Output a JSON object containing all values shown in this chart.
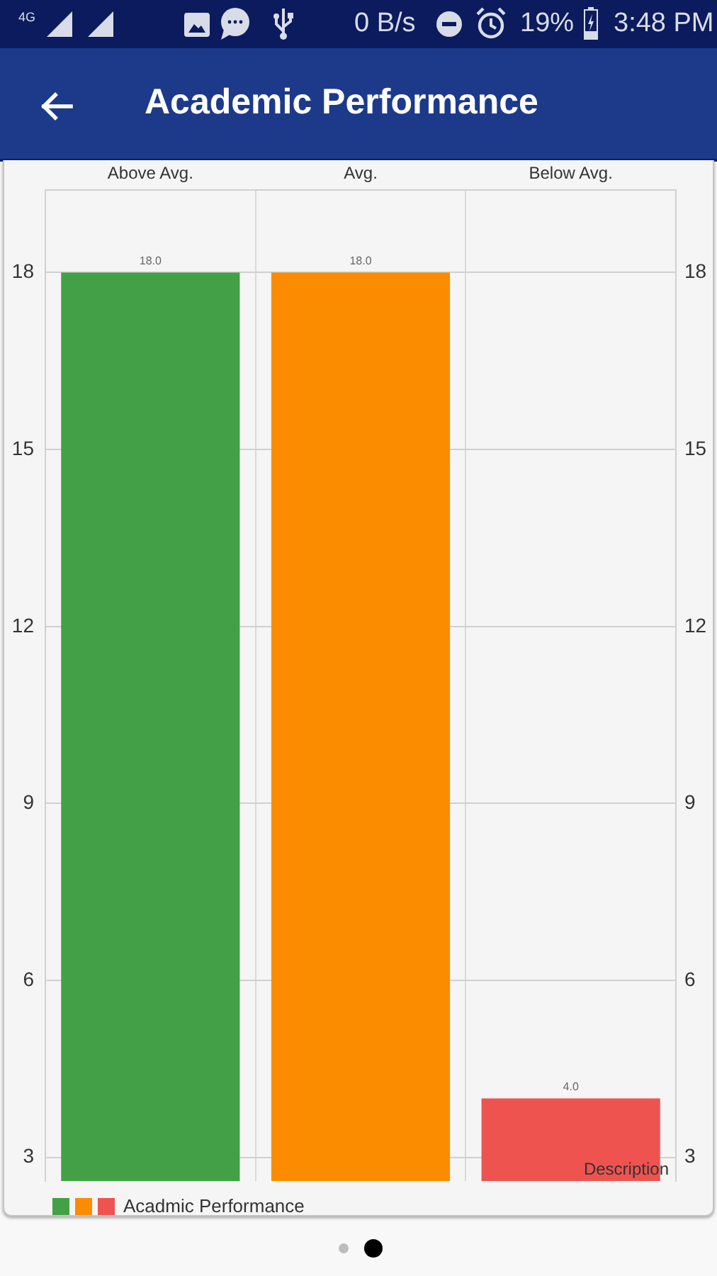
{
  "chart_data": {
    "type": "bar",
    "title": "Academic Performance",
    "categories": [
      "Above Avg.",
      "Avg.",
      "Below Avg."
    ],
    "series": [
      {
        "name": "Acadmic Performance",
        "colors": [
          "#43a047",
          "#fb8c00",
          "#ef5350"
        ],
        "values": [
          18,
          18,
          4
        ],
        "value_labels": [
          "18.0",
          "18.0",
          "4.0"
        ]
      }
    ],
    "ylim": [
      2.6,
      19.4
    ],
    "yticks": [
      3,
      6,
      9,
      12,
      15,
      18
    ],
    "y2lim": [
      2.6,
      19.4
    ],
    "y2ticks": [
      3,
      6,
      9,
      12,
      15,
      18
    ],
    "grid": true,
    "legend": "bottom left",
    "annotations": [
      "Description",
      "4G",
      "0 B/s",
      "19%",
      "3:48 PM"
    ]
  }
}
